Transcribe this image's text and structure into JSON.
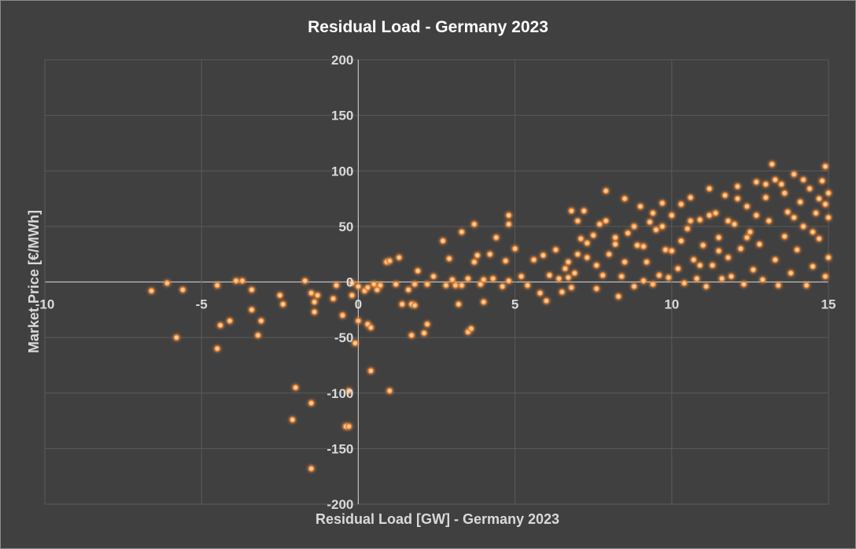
{
  "chart_data": {
    "type": "scatter",
    "title": "Residual Load - Germany 2023",
    "xlabel": "Residual Load [GW] - Germany 2023",
    "ylabel": "Market Price [€/MWh]",
    "xlim": [
      -10,
      15
    ],
    "ylim": [
      -200,
      200
    ],
    "xticks": [
      -10,
      -5,
      0,
      5,
      10,
      15
    ],
    "yticks": [
      -200,
      -150,
      -100,
      -50,
      0,
      50,
      100,
      150,
      200
    ],
    "xtick_labels": [
      "-10",
      "-5",
      "0",
      "5",
      "10",
      "15"
    ],
    "ytick_labels": [
      "-200",
      "-150",
      "-100",
      "-50",
      "0",
      "50",
      "100",
      "150",
      "200"
    ],
    "grid": true,
    "legend": "none",
    "colors": {
      "background": "#404040",
      "marker_fill": "#ffc89a",
      "marker_glow": "#e07a1f",
      "gridline": "#5a5a5a",
      "text": "#d9d9d9",
      "title": "#ffffff"
    },
    "series": [
      {
        "points": [
          [
            -6.6,
            -8
          ],
          [
            -6.1,
            -1
          ],
          [
            -5.8,
            -50
          ],
          [
            -5.6,
            -7
          ],
          [
            -4.5,
            -3
          ],
          [
            -4.5,
            -60
          ],
          [
            -4.4,
            -39
          ],
          [
            -4.1,
            -35
          ],
          [
            -3.9,
            1
          ],
          [
            -3.7,
            1
          ],
          [
            -3.4,
            -7
          ],
          [
            -3.4,
            -25
          ],
          [
            -3.2,
            -48
          ],
          [
            -3.1,
            -35
          ],
          [
            -2.5,
            -12
          ],
          [
            -2.4,
            -20
          ],
          [
            -2.1,
            -124
          ],
          [
            -2.0,
            -95
          ],
          [
            -1.7,
            1
          ],
          [
            -1.5,
            -10
          ],
          [
            -1.5,
            -109
          ],
          [
            -1.5,
            -168
          ],
          [
            -1.4,
            -18
          ],
          [
            -1.4,
            -27
          ],
          [
            -1.3,
            -12
          ],
          [
            -0.8,
            -15
          ],
          [
            -0.7,
            -3
          ],
          [
            -0.5,
            -30
          ],
          [
            -0.4,
            -130
          ],
          [
            -0.3,
            -130
          ],
          [
            -0.3,
            -98
          ],
          [
            -0.2,
            -12
          ],
          [
            -0.2,
            -1
          ],
          [
            -0.1,
            -55
          ],
          [
            0.0,
            -35
          ],
          [
            0.0,
            -4
          ],
          [
            0.2,
            -8
          ],
          [
            0.3,
            -38
          ],
          [
            0.3,
            -5
          ],
          [
            0.4,
            -80
          ],
          [
            0.4,
            -41
          ],
          [
            0.5,
            -2
          ],
          [
            0.6,
            -7
          ],
          [
            0.7,
            -3
          ],
          [
            0.9,
            18
          ],
          [
            1.0,
            19
          ],
          [
            1.0,
            -98
          ],
          [
            1.2,
            -2
          ],
          [
            1.3,
            22
          ],
          [
            1.4,
            -20
          ],
          [
            1.6,
            -7
          ],
          [
            1.7,
            -20
          ],
          [
            1.7,
            -48
          ],
          [
            1.8,
            -21
          ],
          [
            1.8,
            -2
          ],
          [
            1.9,
            10
          ],
          [
            2.2,
            -2
          ],
          [
            2.1,
            -46
          ],
          [
            2.2,
            -38
          ],
          [
            2.4,
            5
          ],
          [
            2.7,
            37
          ],
          [
            2.8,
            -3
          ],
          [
            2.9,
            21
          ],
          [
            3.0,
            2
          ],
          [
            3.1,
            -3
          ],
          [
            3.2,
            -20
          ],
          [
            3.3,
            45
          ],
          [
            3.3,
            -3
          ],
          [
            3.5,
            -45
          ],
          [
            3.5,
            3
          ],
          [
            3.6,
            -42
          ],
          [
            3.7,
            52
          ],
          [
            3.7,
            18
          ],
          [
            3.8,
            24
          ],
          [
            3.9,
            -2
          ],
          [
            4.0,
            2
          ],
          [
            4.0,
            -18
          ],
          [
            4.2,
            25
          ],
          [
            4.3,
            3
          ],
          [
            4.4,
            40
          ],
          [
            4.6,
            -4
          ],
          [
            4.7,
            19
          ],
          [
            4.8,
            60
          ],
          [
            4.8,
            52
          ],
          [
            4.8,
            1
          ],
          [
            5.0,
            30
          ],
          [
            5.2,
            5
          ],
          [
            5.4,
            -3
          ],
          [
            5.6,
            20
          ],
          [
            5.8,
            -10
          ],
          [
            5.9,
            24
          ],
          [
            6.0,
            -17
          ],
          [
            6.1,
            6
          ],
          [
            6.3,
            29
          ],
          [
            6.4,
            3
          ],
          [
            6.5,
            -9
          ],
          [
            6.6,
            12
          ],
          [
            6.7,
            4
          ],
          [
            6.8,
            -5
          ],
          [
            6.8,
            64
          ],
          [
            6.9,
            8
          ],
          [
            7.0,
            55
          ],
          [
            7.1,
            39
          ],
          [
            7.2,
            64
          ],
          [
            7.3,
            22
          ],
          [
            7.5,
            42
          ],
          [
            7.6,
            -6
          ],
          [
            7.7,
            52
          ],
          [
            7.8,
            6
          ],
          [
            7.9,
            82
          ],
          [
            8.0,
            25
          ],
          [
            8.2,
            34
          ],
          [
            8.3,
            -13
          ],
          [
            8.4,
            5
          ],
          [
            8.5,
            75
          ],
          [
            8.6,
            44
          ],
          [
            8.8,
            -4
          ],
          [
            8.9,
            33
          ],
          [
            9.0,
            68
          ],
          [
            9.1,
            1
          ],
          [
            9.2,
            18
          ],
          [
            9.3,
            54
          ],
          [
            9.4,
            -2
          ],
          [
            9.5,
            47
          ],
          [
            9.6,
            6
          ],
          [
            9.7,
            71
          ],
          [
            9.8,
            29
          ],
          [
            9.9,
            4
          ],
          [
            10.0,
            60
          ],
          [
            10.2,
            12
          ],
          [
            10.3,
            37
          ],
          [
            10.4,
            -1
          ],
          [
            10.5,
            48
          ],
          [
            10.6,
            76
          ],
          [
            10.7,
            20
          ],
          [
            10.8,
            3
          ],
          [
            10.9,
            56
          ],
          [
            11.0,
            33
          ],
          [
            11.1,
            -4
          ],
          [
            11.2,
            84
          ],
          [
            11.3,
            15
          ],
          [
            11.4,
            62
          ],
          [
            11.5,
            40
          ],
          [
            11.6,
            3
          ],
          [
            11.7,
            78
          ],
          [
            11.8,
            22
          ],
          [
            11.9,
            5
          ],
          [
            12.0,
            52
          ],
          [
            12.1,
            86
          ],
          [
            12.2,
            30
          ],
          [
            12.3,
            -2
          ],
          [
            12.4,
            68
          ],
          [
            12.5,
            45
          ],
          [
            12.6,
            11
          ],
          [
            12.7,
            90
          ],
          [
            12.8,
            34
          ],
          [
            12.9,
            2
          ],
          [
            13.0,
            76
          ],
          [
            13.1,
            55
          ],
          [
            13.2,
            106
          ],
          [
            13.3,
            20
          ],
          [
            13.4,
            -3
          ],
          [
            13.5,
            88
          ],
          [
            13.6,
            41
          ],
          [
            13.7,
            63
          ],
          [
            13.8,
            8
          ],
          [
            13.9,
            97
          ],
          [
            14.0,
            29
          ],
          [
            14.1,
            72
          ],
          [
            14.2,
            50
          ],
          [
            14.3,
            -3
          ],
          [
            14.4,
            84
          ],
          [
            14.5,
            14
          ],
          [
            14.6,
            62
          ],
          [
            14.7,
            39
          ],
          [
            14.8,
            91
          ],
          [
            14.9,
            104
          ],
          [
            14.9,
            5
          ],
          [
            15.0,
            58
          ],
          [
            15.0,
            22
          ],
          [
            15.0,
            80
          ],
          [
            14.9,
            70
          ],
          [
            14.7,
            75
          ],
          [
            14.5,
            45
          ],
          [
            14.2,
            92
          ],
          [
            13.9,
            58
          ],
          [
            13.6,
            80
          ],
          [
            13.3,
            92
          ],
          [
            13.0,
            88
          ],
          [
            12.7,
            60
          ],
          [
            12.4,
            40
          ],
          [
            12.1,
            75
          ],
          [
            11.8,
            55
          ],
          [
            11.5,
            28
          ],
          [
            11.2,
            60
          ],
          [
            10.9,
            15
          ],
          [
            10.6,
            55
          ],
          [
            10.3,
            70
          ],
          [
            10.0,
            28
          ],
          [
            9.7,
            50
          ],
          [
            9.4,
            62
          ],
          [
            9.1,
            32
          ],
          [
            8.8,
            50
          ],
          [
            8.5,
            18
          ],
          [
            8.2,
            40
          ],
          [
            7.9,
            55
          ],
          [
            7.6,
            15
          ],
          [
            7.3,
            35
          ],
          [
            7.0,
            25
          ],
          [
            6.7,
            18
          ]
        ]
      }
    ]
  }
}
